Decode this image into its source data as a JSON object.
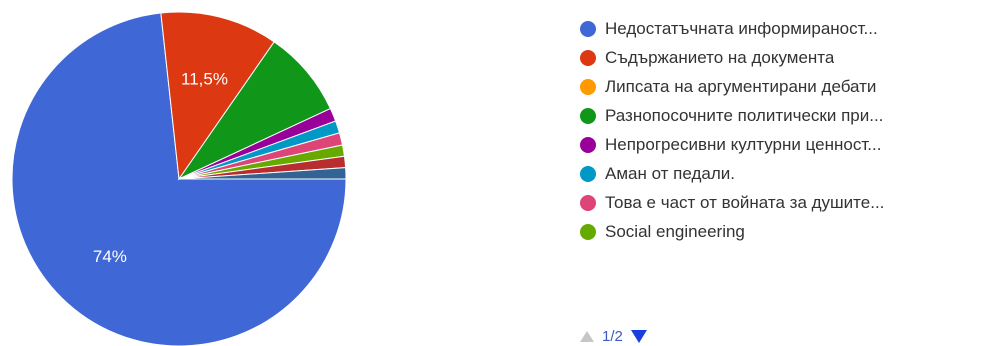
{
  "chart_data": {
    "type": "pie",
    "slices": [
      {
        "label": "Недостатъчната информираност...",
        "value": 74,
        "color": "#3f67d6"
      },
      {
        "label": "Съдържанието на документа",
        "value": 11.5,
        "color": "#dc3912"
      },
      {
        "label": "Липсата на аргументирани дебати",
        "value": 0,
        "color": "#ff9900"
      },
      {
        "label": "Разнопосочните политически при...",
        "value": 8.5,
        "color": "#109618"
      },
      {
        "label": "Непрогресивни културни ценност...",
        "value": 1.3,
        "color": "#990099"
      },
      {
        "label": "Аман от педали.",
        "value": 1.2,
        "color": "#0099c6"
      },
      {
        "label": "Това е част от войната за душите...",
        "value": 1.2,
        "color": "#dd4477"
      },
      {
        "label": "Social engineering",
        "value": 1.1,
        "color": "#66aa00"
      },
      {
        "label": "",
        "value": 1.1,
        "color": "#b82e2e"
      },
      {
        "label": "",
        "value": 1.1,
        "color": "#316395"
      }
    ],
    "data_labels": {
      "0": "74%",
      "1": "11,5%"
    }
  },
  "legend": {
    "items": [
      {
        "label": "Недостатъчната информираност...",
        "color": "#3f67d6"
      },
      {
        "label": "Съдържанието на документа",
        "color": "#dc3912"
      },
      {
        "label": "Липсата на аргументирани дебати",
        "color": "#ff9900"
      },
      {
        "label": "Разнопосочните политически при...",
        "color": "#109618"
      },
      {
        "label": "Непрогресивни културни ценност...",
        "color": "#990099"
      },
      {
        "label": "Аман от педали.",
        "color": "#0099c6"
      },
      {
        "label": "Това е част от войната за душите...",
        "color": "#dd4477"
      },
      {
        "label": "Social engineering",
        "color": "#66aa00"
      }
    ]
  },
  "pager": {
    "text": "1/2"
  }
}
